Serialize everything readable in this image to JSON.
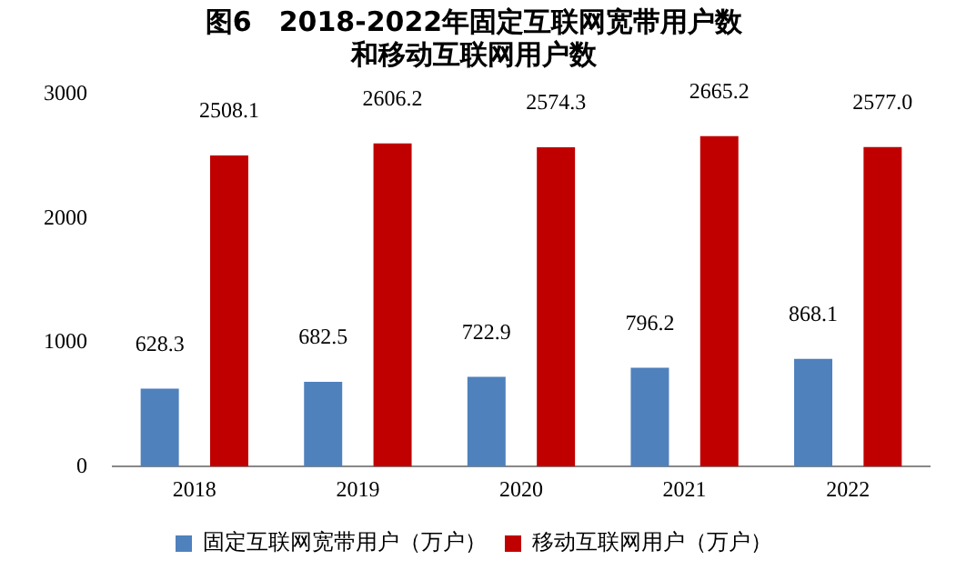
{
  "chart_data": {
    "type": "bar",
    "title": "图6　2018-2022年固定互联网宽带用户数和移动互联网用户数",
    "categories": [
      "2018",
      "2019",
      "2020",
      "2021",
      "2022"
    ],
    "series": [
      {
        "name": "固定互联网宽带用户（万户）",
        "color": "#4f81bd",
        "values": [
          628.3,
          682.5,
          722.9,
          796.2,
          868.1
        ],
        "value_labels": [
          "628.3",
          "682.5",
          "722.9",
          "796.2",
          "868.1"
        ]
      },
      {
        "name": "移动互联网用户（万户）",
        "color": "#c00000",
        "values": [
          2508.1,
          2606.2,
          2574.3,
          2665.2,
          2577
        ],
        "value_labels": [
          "2508.1",
          "2606.2",
          "2574.3",
          "2665.2",
          "2577.0"
        ]
      }
    ],
    "ylim": [
      0,
      3000
    ],
    "yticks": [
      0,
      1000,
      2000,
      3000
    ],
    "grid": false,
    "legend": "bottom"
  }
}
